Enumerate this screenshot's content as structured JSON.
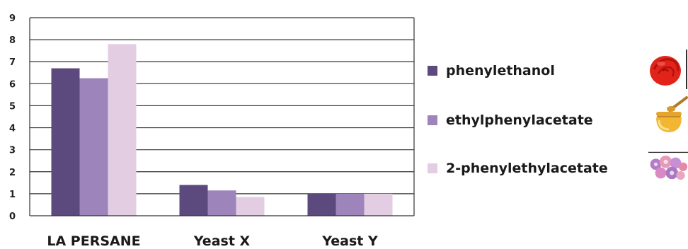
{
  "chart_data": {
    "type": "bar",
    "title": "",
    "xlabel": "",
    "ylabel": "",
    "ylim": [
      0,
      9
    ],
    "yticks": [
      "0",
      "1",
      "2",
      "3",
      "4",
      "5",
      "6",
      "7",
      "8",
      "9"
    ],
    "grid": true,
    "categories": [
      "LA PERSANE",
      "Yeast X",
      "Yeast Y"
    ],
    "series": [
      {
        "name": "phenylethanol",
        "color": "#5c4a7e",
        "values": [
          6.7,
          1.4,
          1.0
        ]
      },
      {
        "name": "ethylphenylacetate",
        "color": "#9d84bb",
        "values": [
          6.25,
          1.15,
          1.0
        ]
      },
      {
        "name": "2-phenylethylacetate",
        "color": "#e2cde2",
        "values": [
          7.8,
          0.85,
          1.0
        ]
      }
    ],
    "legend_position": "right",
    "legend_icons": [
      "rose-icon",
      "honey-jar-icon",
      "flower-bouquet-icon"
    ]
  }
}
